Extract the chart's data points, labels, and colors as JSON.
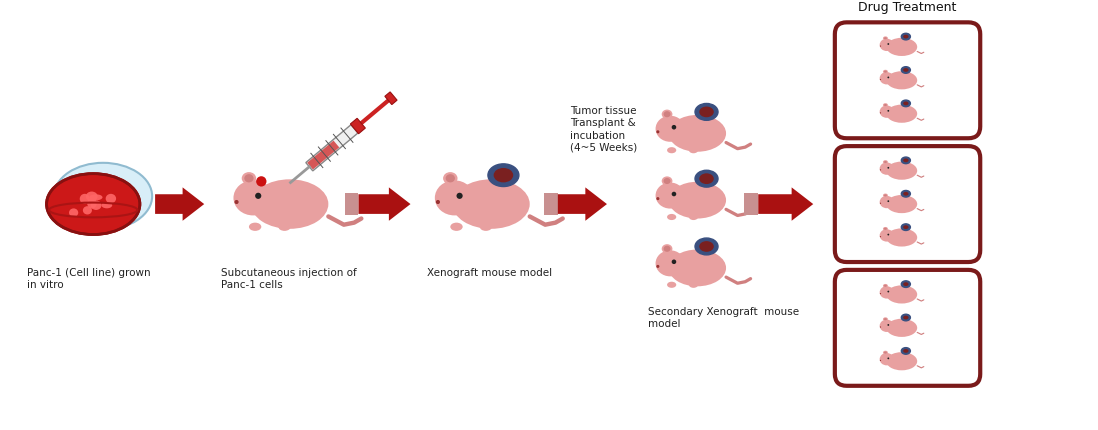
{
  "bg_color": "#ffffff",
  "title": "Drug Treatment",
  "title_fontsize": 9,
  "label1": "Panc-1 (Cell line) grown\nin vitro",
  "label2": "Subcutaneous injection of\nPanc-1 cells",
  "label3": "Xenograft mouse model",
  "label4": "Tumor tissue\nTransplant &\nincubation\n(4~5 Weeks)",
  "label5": "Secondary Xenograft  mouse\nmodel",
  "mouse_body_color": "#e8a0a0",
  "mouse_ear_color": "#d08080",
  "tumor_outer_color": "#3a5080",
  "tumor_inner_color": "#7a2020",
  "arrow_color": "#aa1111",
  "box_border_color": "#7a1a1a",
  "label_fontsize": 7.5,
  "label_color": "#222222"
}
